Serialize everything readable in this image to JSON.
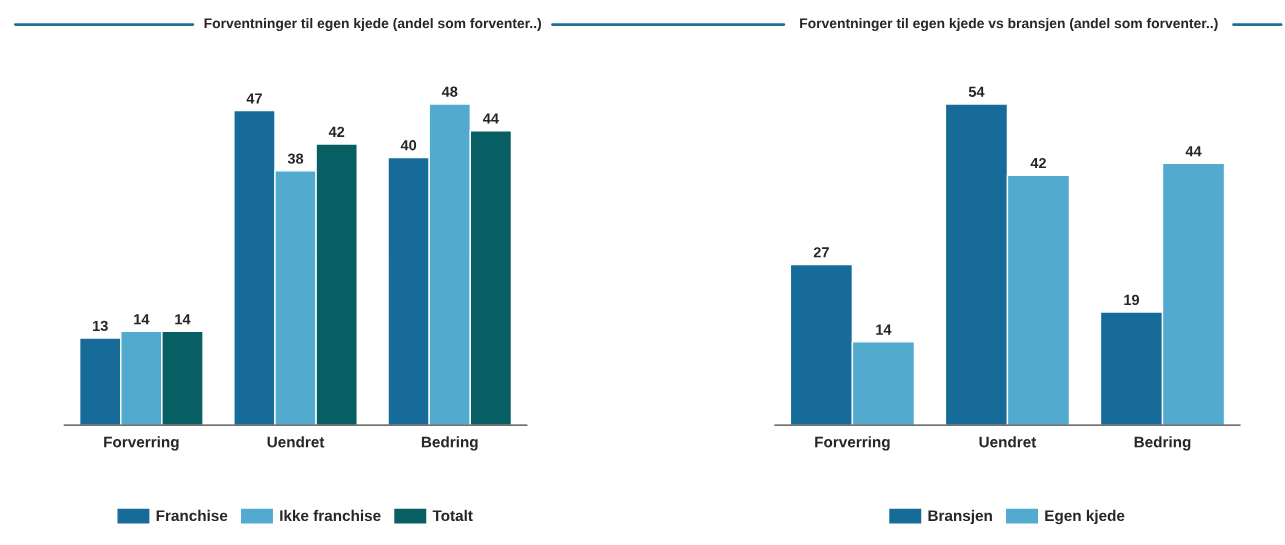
{
  "chart_data": [
    {
      "type": "bar",
      "title": "Forventninger til egen kjede (andel som forventer..)",
      "categories": [
        "Forverring",
        "Uendret",
        "Bedring"
      ],
      "series": [
        {
          "name": "Franchise",
          "color": "#176b99",
          "values": [
            13,
            47,
            40
          ]
        },
        {
          "name": "Ikke franchise",
          "color": "#52aacf",
          "values": [
            14,
            38,
            48
          ]
        },
        {
          "name": "Totalt",
          "color": "#085f63",
          "values": [
            14,
            42,
            44
          ]
        }
      ],
      "data_labels": true,
      "legend": "bottom",
      "grid": false,
      "tick_labels": "x"
    },
    {
      "type": "bar",
      "title": "Forventninger til egen kjede vs bransjen (andel som forventer..)",
      "categories": [
        "Forverring",
        "Uendret",
        "Bedring"
      ],
      "series": [
        {
          "name": "Bransjen",
          "color": "#176b99",
          "values": [
            27,
            54,
            19
          ]
        },
        {
          "name": "Egen kjede",
          "color": "#52aacf",
          "values": [
            14,
            42,
            44
          ]
        }
      ],
      "data_labels": true,
      "legend": "bottom",
      "grid": false,
      "tick_labels": "x"
    }
  ]
}
